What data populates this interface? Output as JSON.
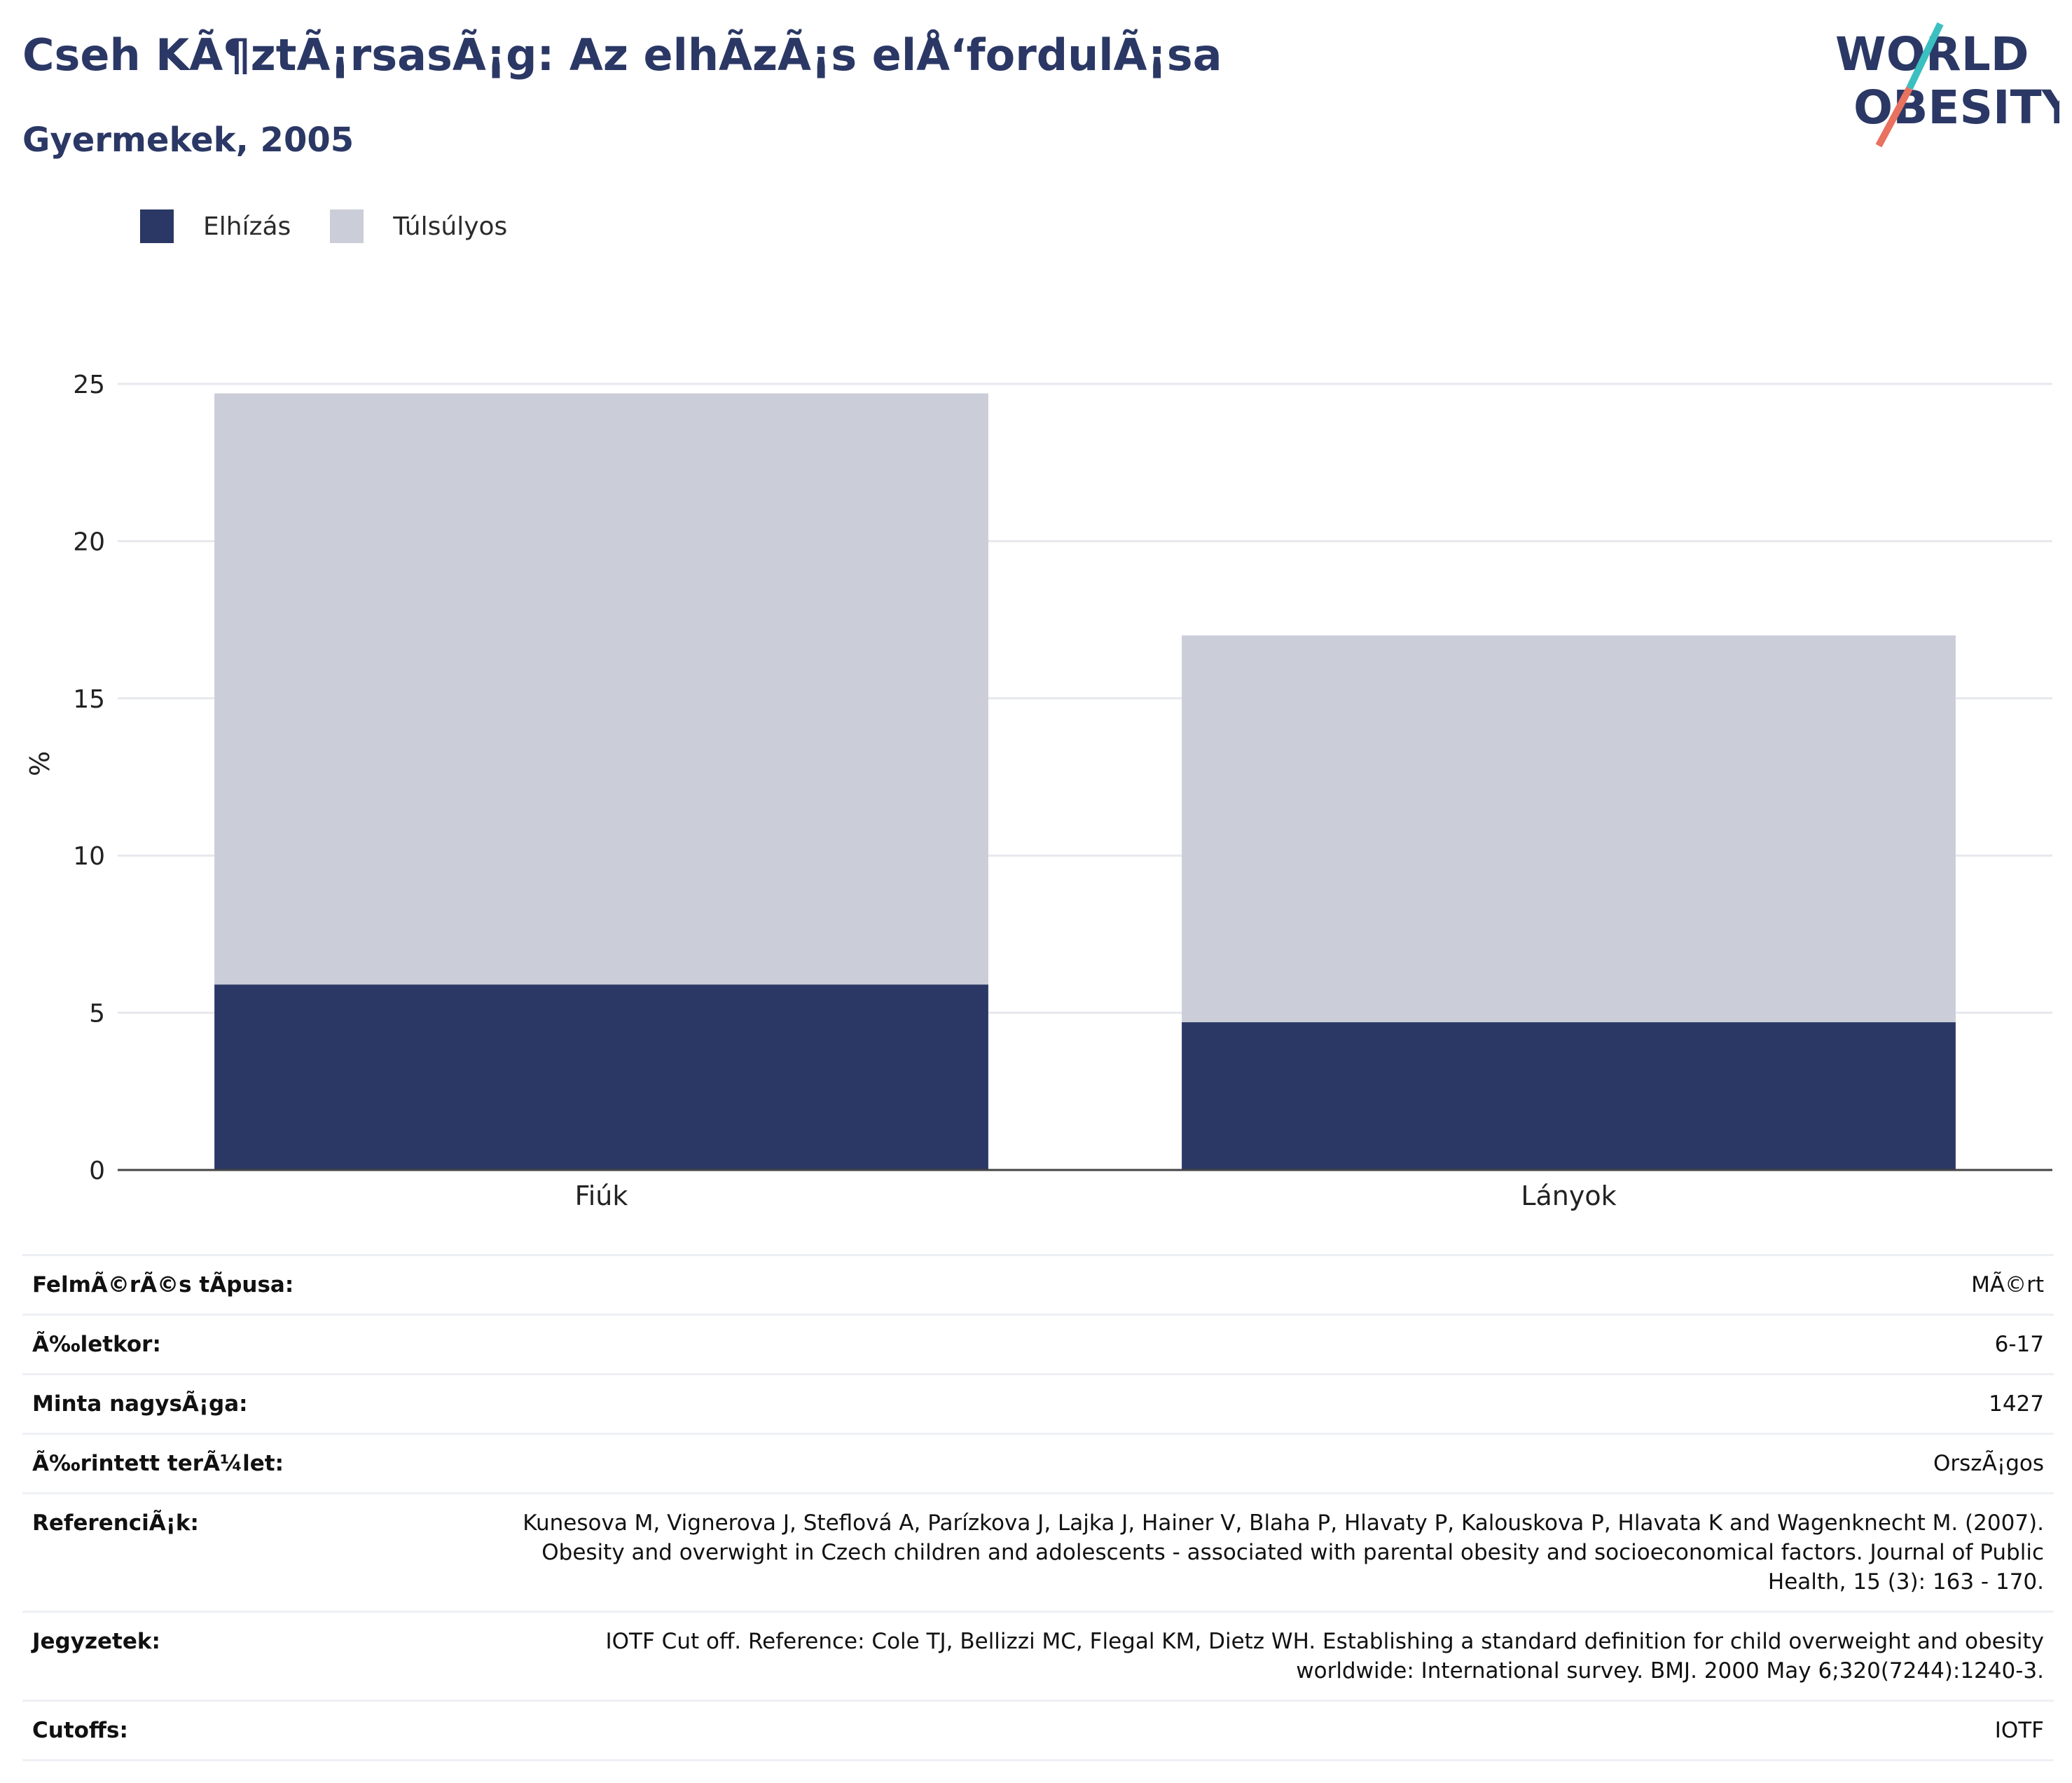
{
  "header": {
    "title": "Cseh KÃ¶ztÃ¡rsasÃ¡g: Az elhÃzÃ¡s elÅ‘fordulÃ¡sa",
    "subtitle": "Gyermekek, 2005"
  },
  "logo": {
    "line1": "WORLD",
    "line2": "OBESITY",
    "accent_teal": "#3bbfc0",
    "accent_coral": "#e8715f"
  },
  "colors": {
    "obesity": "#2b3865",
    "overweight": "#cbcdd8",
    "axis": "#444444",
    "grid": "#e6e8ee",
    "text": "#2b3865"
  },
  "chart_data": {
    "type": "bar",
    "stacked": true,
    "categories": [
      "Fiúk",
      "Lányok"
    ],
    "series": [
      {
        "name": "Elhízás",
        "values": [
          5.9,
          4.7
        ],
        "color": "#2b3865"
      },
      {
        "name": "Túlsúlyos",
        "values": [
          18.8,
          12.3
        ],
        "color": "#cbcdd8"
      }
    ],
    "ylabel": "%",
    "ylim": [
      0,
      25
    ],
    "yticks": [
      0,
      5,
      10,
      15,
      20,
      25
    ],
    "grid": true,
    "legend_position": "top-left"
  },
  "meta": [
    {
      "label": "FelmÃ©rÃ©s tÃpusa:",
      "value": "MÃ©rt"
    },
    {
      "label": "Ã‰letkor:",
      "value": "6-17"
    },
    {
      "label": "Minta nagysÃ¡ga:",
      "value": "1427"
    },
    {
      "label": "Ã‰rintett terÃ¼let:",
      "value": "OrszÃ¡gos"
    },
    {
      "label": "ReferenciÃ¡k:",
      "value": "Kunesova M, Vignerova J, Steflová A, Parízkova J, Lajka J, Hainer V, Blaha P, Hlavaty P, Kalouskova P, Hlavata K and Wagenknecht M. (2007). Obesity and overwight in Czech children and adolescents - associated with parental obesity and socioeconomical factors. Journal of Public Health, 15 (3): 163 - 170."
    },
    {
      "label": "Jegyzetek:",
      "value": "IOTF Cut off. Reference: Cole TJ, Bellizzi MC, Flegal KM, Dietz WH. Establishing a standard definition for child overweight and obesity worldwide: International survey. BMJ. 2000 May 6;320(7244):1240-3."
    },
    {
      "label": "Cutoffs:",
      "value": "IOTF"
    }
  ]
}
